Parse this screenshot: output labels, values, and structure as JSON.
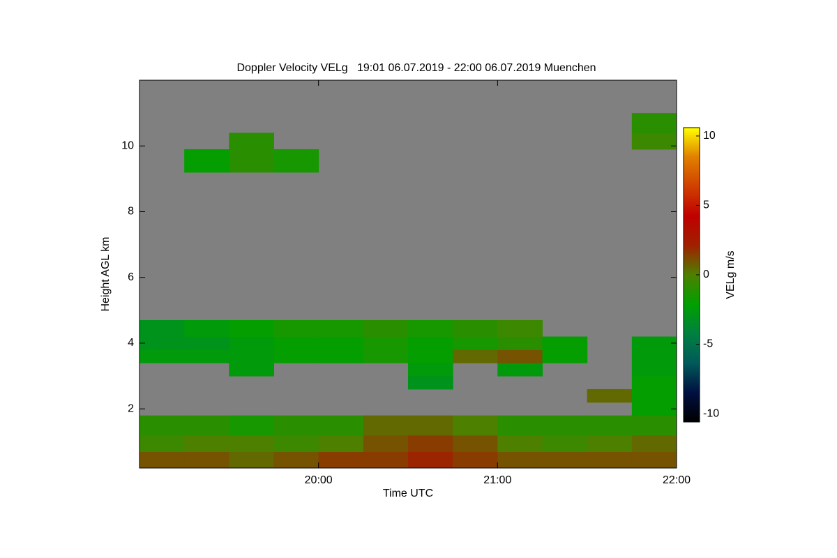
{
  "chart_data": {
    "type": "heatmap",
    "title": "Doppler Velocity VELg   19:01 06.07.2019 - 22:00 06.07.2019 Muenchen",
    "x_label": "Time UTC",
    "y_label": "Height AGL km",
    "colorbar_label": "VELg m/s",
    "background_color": "#808080",
    "colormap": [
      "#000000",
      "#001040",
      "#005a5a",
      "#008040",
      "#00a000",
      "#4e8000",
      "#a02000",
      "#c00000",
      "#d04000",
      "#e08000",
      "#ffff00"
    ],
    "x_edges": [
      19.0,
      19.25,
      19.5,
      19.75,
      20.0,
      20.25,
      20.5,
      20.75,
      21.0,
      21.25,
      21.5,
      21.75,
      22.0
    ],
    "y_edges": [
      0.2,
      0.7,
      1.2,
      1.8,
      2.2,
      2.6,
      3.0,
      3.4,
      3.8,
      4.2,
      4.7,
      9.2,
      9.9,
      10.4,
      11.0,
      12.0
    ],
    "values": [
      [
        1,
        1,
        0.5,
        1,
        1.5,
        1.5,
        2,
        1.5,
        1,
        1,
        1,
        1
      ],
      [
        -0.5,
        0,
        0,
        -0.5,
        0,
        1,
        1.5,
        1,
        0,
        -0.5,
        0,
        0.5
      ],
      [
        -1,
        -1,
        -1.5,
        -1,
        -1,
        0.5,
        0.5,
        0,
        -1,
        -1,
        -1,
        -1
      ],
      [
        null,
        null,
        null,
        null,
        null,
        null,
        null,
        null,
        null,
        null,
        null,
        -2
      ],
      [
        null,
        null,
        null,
        null,
        null,
        null,
        null,
        null,
        null,
        null,
        0.5,
        -2
      ],
      [
        null,
        null,
        null,
        null,
        null,
        null,
        -3,
        null,
        null,
        null,
        null,
        -2
      ],
      [
        null,
        null,
        -2.5,
        null,
        null,
        null,
        -2.5,
        null,
        -2.5,
        null,
        null,
        -2.5
      ],
      [
        -2.5,
        -2.5,
        -2.5,
        -2,
        -2,
        -1.5,
        -2,
        0.5,
        1,
        -2,
        null,
        -2.5
      ],
      [
        -3,
        -3,
        -2.5,
        -2,
        -2,
        -1.5,
        -2,
        -1.5,
        -1,
        -2,
        null,
        -2.5
      ],
      [
        -3,
        -2.5,
        -2,
        -1.5,
        -1.5,
        -1,
        -1.5,
        -1,
        -0.5,
        null,
        null,
        null
      ],
      [
        null,
        null,
        null,
        null,
        null,
        null,
        null,
        null,
        null,
        null,
        null,
        null
      ],
      [
        null,
        -2,
        -1,
        -1.5,
        null,
        null,
        null,
        null,
        null,
        null,
        null,
        null
      ],
      [
        null,
        null,
        -1,
        null,
        null,
        null,
        null,
        null,
        null,
        null,
        null,
        -0.5
      ],
      [
        null,
        null,
        null,
        null,
        null,
        null,
        null,
        null,
        null,
        null,
        null,
        -1
      ],
      [
        null,
        null,
        null,
        null,
        null,
        null,
        null,
        null,
        null,
        null,
        null,
        null
      ]
    ],
    "xlim": [
      19.0,
      22.0
    ],
    "xticks": [
      {
        "value": 20,
        "label": "20:00"
      },
      {
        "value": 21,
        "label": "21:00"
      },
      {
        "value": 22,
        "label": "22:00"
      }
    ],
    "ylim": [
      0.2,
      12.0
    ],
    "yticks": [
      2,
      4,
      6,
      8,
      10
    ],
    "clim": [
      -10.6,
      10.6
    ],
    "cticks": [
      -10,
      -5,
      0,
      5,
      10
    ]
  }
}
